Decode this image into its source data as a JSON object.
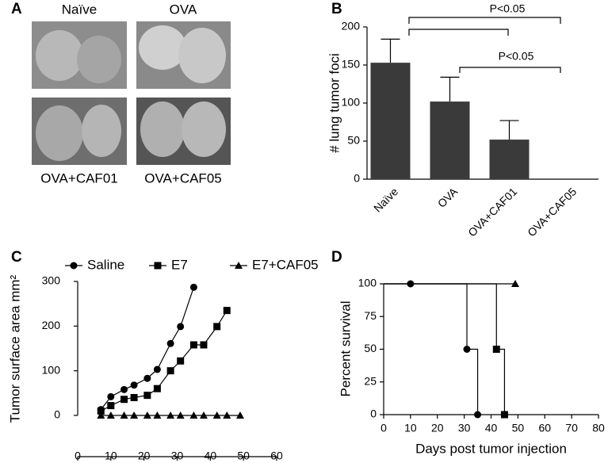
{
  "figure": {
    "panel_a": {
      "letter": "A",
      "labels": [
        "Naïve",
        "OVA",
        "OVA+CAF01",
        "OVA+CAF05"
      ]
    }
  },
  "chart_data": [
    {
      "type": "bar",
      "letter": "B",
      "ylabel": "# lung tumor foci",
      "categories": [
        "Naïve",
        "OVA",
        "OVA+CAF01",
        "OVA+CAF05"
      ],
      "values": [
        153,
        102,
        52,
        0
      ],
      "errors": [
        31,
        32,
        25,
        0
      ],
      "color": "#3a3a3a",
      "ylim": [
        0,
        200
      ],
      "yticks": [
        0,
        50,
        100,
        150,
        200
      ],
      "annotations": [
        "P<0.05",
        "P<0.05"
      ]
    },
    {
      "type": "line",
      "letter": "C",
      "ylabel": "Tumor surface area mm²",
      "color": "#000000",
      "xlim": [
        0,
        60
      ],
      "xticks": [
        0,
        10,
        20,
        30,
        40,
        50,
        60
      ],
      "ylim": [
        0,
        300
      ],
      "yticks": [
        0,
        100,
        200,
        300
      ],
      "series": [
        {
          "name": "Saline",
          "marker": "circle",
          "x": [
            7,
            10,
            14,
            17,
            21,
            24,
            28,
            31,
            35
          ],
          "values": [
            13,
            42,
            58,
            68,
            83,
            103,
            161,
            199,
            287
          ]
        },
        {
          "name": "E7",
          "marker": "square",
          "x": [
            7,
            10,
            14,
            17,
            21,
            24,
            28,
            31,
            35,
            38,
            42,
            45
          ],
          "values": [
            10,
            22,
            36,
            40,
            45,
            60,
            100,
            122,
            158,
            158,
            199,
            235
          ]
        },
        {
          "name": "E7+CAF05",
          "marker": "triangle",
          "x": [
            7,
            10,
            14,
            17,
            21,
            24,
            28,
            31,
            35,
            38,
            42,
            45,
            49
          ],
          "values": [
            0,
            0,
            0,
            0,
            0,
            0,
            0,
            0,
            0,
            0,
            0,
            0,
            0
          ]
        }
      ]
    },
    {
      "type": "step",
      "letter": "D",
      "xlabel": "Days post tumor injection",
      "ylabel": "Percent survival",
      "color": "#000000",
      "xlim": [
        0,
        80
      ],
      "xticks": [
        0,
        10,
        20,
        30,
        40,
        50,
        60,
        70,
        80
      ],
      "ylim": [
        0,
        100
      ],
      "yticks": [
        0,
        25,
        50,
        75,
        100
      ],
      "series": [
        {
          "name": "Saline",
          "marker": "circle",
          "x": [
            10,
            31,
            35
          ],
          "values": [
            100,
            50,
            0
          ]
        },
        {
          "name": "E7",
          "marker": "square",
          "x": [
            42,
            45
          ],
          "values": [
            50,
            0
          ]
        },
        {
          "name": "E7+CAF05",
          "marker": "triangle",
          "x": [
            49
          ],
          "values": [
            100
          ]
        }
      ]
    }
  ]
}
